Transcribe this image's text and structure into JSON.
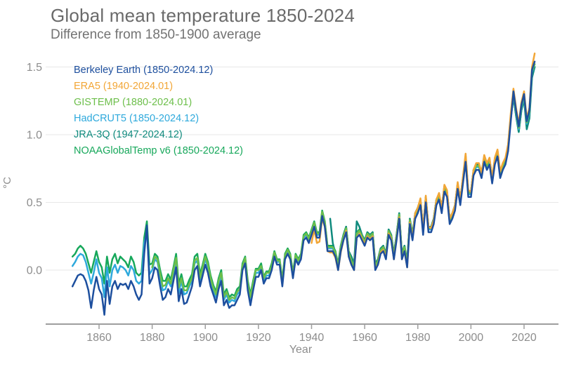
{
  "header": {
    "title": "Global mean temperature 1850-2024",
    "subtitle": "Difference from 1850-1900 average"
  },
  "chart_data": {
    "type": "line",
    "title": "Global mean temperature 1850-2024",
    "subtitle": "Difference from 1850-1900 average",
    "xlabel": "Year",
    "ylabel": "°C",
    "x_range": [
      1850,
      2024
    ],
    "y_range": [
      -0.4,
      1.65
    ],
    "x_ticks": [
      1860,
      1880,
      1900,
      1920,
      1940,
      1960,
      1980,
      2000,
      2020
    ],
    "y_ticks": [
      "0.0",
      "0.5",
      "1.0",
      "1.5"
    ],
    "grid": "horizontal",
    "legend_position": "top-left",
    "axis_color": "#9e9e9e",
    "grid_color": "#e7e7e7",
    "tick_label_color": "#8d8d8d",
    "series": [
      {
        "name": "Berkeley Earth",
        "label": "Berkeley Earth (1850-2024.12)",
        "color": "#1d4f9e",
        "start_year": 1850,
        "values": [
          -0.12,
          -0.08,
          -0.04,
          -0.03,
          -0.04,
          -0.08,
          -0.15,
          -0.28,
          -0.15,
          -0.05,
          -0.14,
          -0.18,
          -0.33,
          -0.08,
          -0.25,
          -0.12,
          -0.08,
          -0.14,
          -0.1,
          -0.11,
          -0.1,
          -0.14,
          -0.08,
          -0.12,
          -0.18,
          -0.22,
          -0.18,
          0.12,
          0.33,
          -0.1,
          -0.06,
          0.02,
          0.0,
          -0.12,
          -0.22,
          -0.2,
          -0.14,
          -0.18,
          -0.08,
          0.02,
          -0.23,
          -0.14,
          -0.25,
          -0.24,
          -0.18,
          -0.12,
          0.0,
          0.03,
          -0.12,
          -0.04,
          0.04,
          -0.02,
          -0.12,
          -0.18,
          -0.24,
          -0.14,
          -0.08,
          -0.26,
          -0.22,
          -0.28,
          -0.26,
          -0.26,
          -0.22,
          -0.18,
          0.0,
          0.05,
          -0.15,
          -0.26,
          -0.15,
          -0.05,
          -0.05,
          0.0,
          -0.1,
          -0.06,
          -0.06,
          0.0,
          0.1,
          0.04,
          0.04,
          -0.12,
          0.08,
          0.12,
          0.08,
          -0.06,
          0.08,
          0.04,
          0.08,
          0.22,
          0.24,
          0.2,
          0.26,
          0.32,
          0.24,
          0.24,
          0.4,
          0.32,
          0.14,
          0.14,
          0.14,
          0.1,
          0.0,
          0.14,
          0.22,
          0.28,
          0.1,
          0.04,
          0.0,
          0.24,
          0.26,
          0.22,
          0.18,
          0.24,
          0.22,
          0.24,
          0.0,
          0.04,
          0.12,
          0.14,
          0.08,
          0.26,
          0.22,
          0.08,
          0.22,
          0.38,
          0.08,
          0.14,
          0.02,
          0.34,
          0.22,
          0.38,
          0.42,
          0.48,
          0.26,
          0.5,
          0.28,
          0.28,
          0.34,
          0.48,
          0.52,
          0.42,
          0.58,
          0.54,
          0.34,
          0.38,
          0.44,
          0.6,
          0.48,
          0.64,
          0.8,
          0.54,
          0.54,
          0.7,
          0.74,
          0.74,
          0.68,
          0.8,
          0.74,
          0.78,
          0.64,
          0.78,
          0.84,
          0.68,
          0.74,
          0.78,
          0.88,
          1.1,
          1.32,
          1.18,
          1.06,
          1.22,
          1.3,
          1.1,
          1.18,
          1.48,
          1.54
        ]
      },
      {
        "name": "ERA5",
        "label": "ERA5 (1940-2024.01)",
        "color": "#f2a636",
        "start_year": 1940,
        "values": [
          0.2,
          0.3,
          0.2,
          0.21,
          0.38,
          0.32,
          0.14,
          0.13,
          0.13,
          0.09,
          0.0,
          0.13,
          0.22,
          0.29,
          0.1,
          0.04,
          0.0,
          0.24,
          0.27,
          0.23,
          0.19,
          0.25,
          0.23,
          0.25,
          0.01,
          0.04,
          0.13,
          0.15,
          0.09,
          0.27,
          0.23,
          0.08,
          0.23,
          0.39,
          0.08,
          0.14,
          0.02,
          0.35,
          0.23,
          0.42,
          0.46,
          0.53,
          0.3,
          0.55,
          0.32,
          0.31,
          0.37,
          0.52,
          0.57,
          0.46,
          0.63,
          0.59,
          0.38,
          0.42,
          0.48,
          0.65,
          0.52,
          0.69,
          0.86,
          0.59,
          0.58,
          0.74,
          0.79,
          0.79,
          0.72,
          0.85,
          0.79,
          0.83,
          0.68,
          0.83,
          0.89,
          0.73,
          0.79,
          0.83,
          0.93,
          1.16,
          1.34,
          1.2,
          1.08,
          1.24,
          1.32,
          1.12,
          1.2,
          1.5,
          1.6
        ]
      },
      {
        "name": "GISTEMP",
        "label": "GISTEMP (1880-2024.01)",
        "color": "#6dbf4b",
        "start_year": 1880,
        "values": [
          0.02,
          0.1,
          0.08,
          -0.03,
          -0.12,
          -0.11,
          -0.06,
          -0.1,
          0.0,
          0.09,
          -0.13,
          -0.06,
          -0.15,
          -0.15,
          -0.1,
          -0.06,
          0.07,
          0.09,
          -0.06,
          0.02,
          0.1,
          0.04,
          -0.06,
          -0.13,
          -0.18,
          -0.08,
          -0.02,
          -0.2,
          -0.16,
          -0.22,
          -0.2,
          -0.21,
          -0.16,
          -0.14,
          0.03,
          0.09,
          -0.1,
          -0.2,
          -0.1,
          0.0,
          0.0,
          0.03,
          -0.06,
          -0.02,
          -0.02,
          0.03,
          0.13,
          0.07,
          0.07,
          -0.08,
          0.11,
          0.15,
          0.11,
          -0.03,
          0.11,
          0.07,
          0.11,
          0.25,
          0.27,
          0.23,
          0.29,
          0.35,
          0.27,
          0.27,
          0.43,
          0.35,
          0.17,
          0.17,
          0.17,
          0.13,
          0.03,
          0.17,
          0.25,
          0.31,
          0.13,
          0.07,
          0.03,
          0.27,
          0.29,
          0.25,
          0.21,
          0.27,
          0.25,
          0.27,
          0.03,
          0.07,
          0.15,
          0.17,
          0.11,
          0.29,
          0.25,
          0.11,
          0.25,
          0.41,
          0.11,
          0.17,
          0.05,
          0.37,
          0.25,
          0.41,
          0.45,
          0.51,
          0.29,
          0.53,
          0.31,
          0.31,
          0.37,
          0.51,
          0.55,
          0.45,
          0.61,
          0.57,
          0.37,
          0.41,
          0.47,
          0.63,
          0.51,
          0.67,
          0.83,
          0.57,
          0.57,
          0.73,
          0.77,
          0.77,
          0.71,
          0.83,
          0.77,
          0.81,
          0.67,
          0.81,
          0.87,
          0.71,
          0.77,
          0.81,
          0.91,
          1.13,
          1.31,
          1.17,
          1.05,
          1.21,
          1.29,
          1.09,
          1.17,
          1.47,
          1.52
        ]
      },
      {
        "name": "HadCRUT5",
        "label": "HadCRUT5 (1850-2024.12)",
        "color": "#2ea9dc",
        "start_year": 1850,
        "values": [
          0.03,
          0.06,
          0.1,
          0.12,
          0.11,
          0.06,
          -0.02,
          -0.1,
          -0.02,
          0.08,
          -0.02,
          -0.06,
          -0.2,
          0.02,
          -0.12,
          0.0,
          0.04,
          -0.02,
          0.03,
          0.02,
          0.0,
          -0.04,
          0.03,
          0.0,
          -0.08,
          -0.1,
          -0.08,
          0.2,
          0.28,
          -0.03,
          0.0,
          0.08,
          0.06,
          -0.05,
          -0.15,
          -0.14,
          -0.08,
          -0.12,
          -0.03,
          0.06,
          -0.17,
          -0.08,
          -0.18,
          -0.17,
          -0.12,
          -0.08,
          0.05,
          0.07,
          -0.08,
          0.0,
          0.08,
          0.02,
          -0.08,
          -0.15,
          -0.2,
          -0.1,
          -0.04,
          -0.22,
          -0.18,
          -0.24,
          -0.22,
          -0.23,
          -0.18,
          -0.16,
          0.02,
          0.08,
          -0.12,
          -0.22,
          -0.12,
          -0.02,
          -0.02,
          0.02,
          -0.08,
          -0.04,
          -0.04,
          0.02,
          0.12,
          0.06,
          0.06,
          -0.1,
          0.1,
          0.14,
          0.1,
          -0.04,
          0.1,
          0.06,
          0.1,
          0.24,
          0.26,
          0.22,
          0.28,
          0.34,
          0.26,
          0.26,
          0.42,
          0.34,
          0.16,
          0.16,
          0.16,
          0.12,
          0.02,
          0.16,
          0.24,
          0.3,
          0.12,
          0.06,
          0.02,
          0.26,
          0.28,
          0.24,
          0.2,
          0.26,
          0.24,
          0.26,
          0.02,
          0.06,
          0.14,
          0.16,
          0.1,
          0.28,
          0.24,
          0.1,
          0.24,
          0.4,
          0.1,
          0.16,
          0.04,
          0.36,
          0.24,
          0.4,
          0.44,
          0.5,
          0.28,
          0.52,
          0.3,
          0.3,
          0.36,
          0.5,
          0.54,
          0.44,
          0.6,
          0.56,
          0.36,
          0.4,
          0.46,
          0.62,
          0.5,
          0.66,
          0.82,
          0.56,
          0.56,
          0.72,
          0.76,
          0.76,
          0.7,
          0.82,
          0.76,
          0.8,
          0.66,
          0.8,
          0.86,
          0.7,
          0.76,
          0.8,
          0.9,
          1.12,
          1.3,
          1.16,
          1.04,
          1.2,
          1.28,
          1.08,
          1.16,
          1.46,
          1.52
        ]
      },
      {
        "name": "JRA-3Q",
        "label": "JRA-3Q (1947-2024.12)",
        "color": "#0f8a7d",
        "start_year": 1947,
        "values": [
          0.38,
          0.2,
          0.12,
          0.05,
          0.18,
          0.26,
          0.32,
          0.14,
          0.1,
          0.05,
          0.36,
          0.32,
          0.26,
          0.22,
          0.28,
          0.26,
          0.28,
          0.05,
          0.08,
          0.16,
          0.18,
          0.12,
          0.3,
          0.26,
          0.12,
          0.26,
          0.42,
          0.12,
          0.18,
          0.06,
          0.38,
          0.26,
          0.42,
          0.46,
          0.52,
          0.3,
          0.54,
          0.32,
          0.32,
          0.38,
          0.52,
          0.56,
          0.46,
          0.62,
          0.58,
          0.38,
          0.42,
          0.48,
          0.64,
          0.52,
          0.68,
          0.84,
          0.58,
          0.58,
          0.74,
          0.78,
          0.78,
          0.72,
          0.84,
          0.78,
          0.82,
          0.68,
          0.82,
          0.88,
          0.72,
          0.78,
          0.82,
          0.92,
          1.12,
          1.28,
          1.14,
          1.02,
          1.18,
          1.26,
          1.04,
          1.12,
          1.42,
          1.5
        ]
      },
      {
        "name": "NOAAGlobalTemp v6",
        "label": "NOAAGlobalTemp v6 (1850-2024.12)",
        "color": "#17a85b",
        "start_year": 1850,
        "values": [
          0.1,
          0.12,
          0.16,
          0.18,
          0.16,
          0.12,
          0.05,
          -0.02,
          0.06,
          0.14,
          0.06,
          0.02,
          -0.1,
          0.1,
          -0.02,
          0.08,
          0.12,
          0.05,
          0.1,
          0.08,
          0.06,
          0.02,
          0.1,
          0.06,
          -0.02,
          -0.04,
          -0.02,
          0.24,
          0.36,
          0.04,
          0.05,
          0.12,
          0.1,
          0.0,
          -0.08,
          -0.08,
          -0.03,
          -0.07,
          0.02,
          0.12,
          -0.1,
          -0.03,
          -0.12,
          -0.12,
          -0.07,
          -0.03,
          0.1,
          0.12,
          -0.03,
          0.04,
          0.12,
          0.06,
          -0.04,
          -0.11,
          -0.16,
          -0.06,
          0.0,
          -0.18,
          -0.14,
          -0.2,
          -0.18,
          -0.19,
          -0.14,
          -0.12,
          0.05,
          0.1,
          -0.08,
          -0.18,
          -0.08,
          0.01,
          0.01,
          0.05,
          -0.05,
          -0.01,
          -0.01,
          0.05,
          0.14,
          0.08,
          0.08,
          -0.07,
          0.12,
          0.16,
          0.12,
          -0.02,
          0.12,
          0.08,
          0.12,
          0.26,
          0.28,
          0.24,
          0.3,
          0.36,
          0.28,
          0.28,
          0.44,
          0.36,
          0.18,
          0.18,
          0.18,
          0.14,
          0.04,
          0.18,
          0.26,
          0.32,
          0.14,
          0.08,
          0.04,
          0.28,
          0.3,
          0.26,
          0.22,
          0.28,
          0.26,
          0.28,
          0.04,
          0.08,
          0.16,
          0.18,
          0.12,
          0.3,
          0.26,
          0.12,
          0.26,
          0.42,
          0.12,
          0.18,
          0.06,
          0.38,
          0.26,
          0.42,
          0.46,
          0.52,
          0.3,
          0.54,
          0.32,
          0.32,
          0.38,
          0.52,
          0.56,
          0.46,
          0.62,
          0.58,
          0.38,
          0.42,
          0.48,
          0.64,
          0.52,
          0.68,
          0.84,
          0.58,
          0.58,
          0.74,
          0.78,
          0.78,
          0.72,
          0.84,
          0.78,
          0.82,
          0.68,
          0.82,
          0.88,
          0.72,
          0.78,
          0.82,
          0.92,
          1.14,
          1.28,
          1.14,
          1.02,
          1.18,
          1.26,
          1.06,
          1.14,
          1.44,
          1.5
        ]
      }
    ]
  }
}
